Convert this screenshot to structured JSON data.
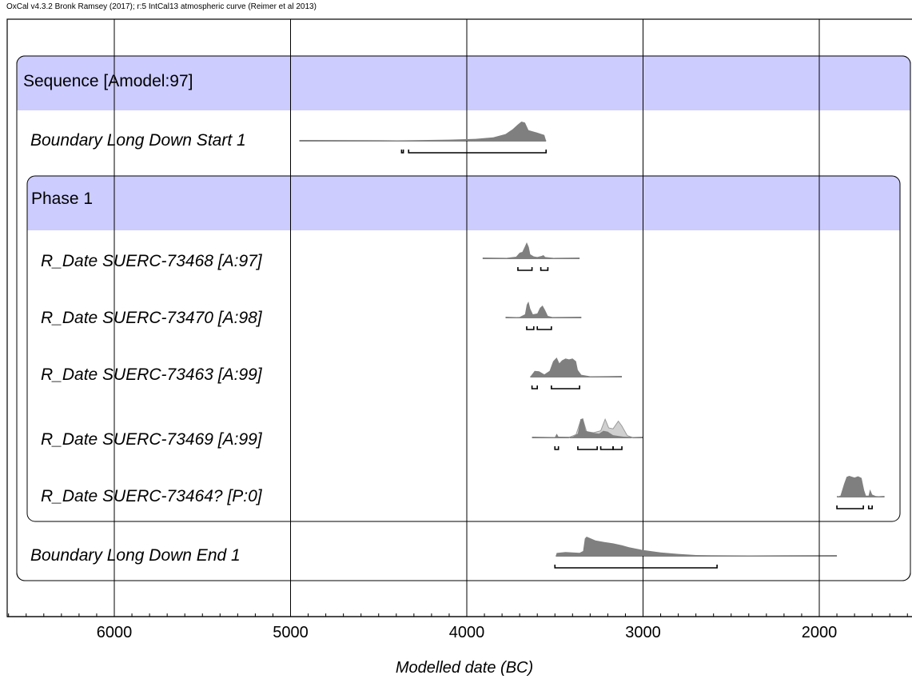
{
  "header": "OxCal v4.3.2 Bronk Ramsey (2017); r:5 IntCal13 atmospheric curve (Reimer et al 2013)",
  "chart_data": {
    "type": "area",
    "title": "",
    "xlabel": "Modelled date (BC)",
    "xticks": [
      6000,
      5000,
      4000,
      3000,
      2000
    ],
    "xlim": [
      6600,
      1500
    ],
    "minor_tick_step": 100,
    "grid": true,
    "colors": {
      "group_header": "#ccccff",
      "posterior": "#7f7f7f",
      "likelihood": "#d0d0d0",
      "frame": "#000000"
    },
    "groups": [
      {
        "label": "Sequence [Amodel:97]"
      },
      {
        "label": "Phase 1"
      }
    ],
    "rows": [
      {
        "label": "Boundary Long Down Start 1",
        "posterior": [
          [
            4950,
            0
          ],
          [
            4500,
            0.01
          ],
          [
            4300,
            0.03
          ],
          [
            4100,
            0.06
          ],
          [
            3950,
            0.1
          ],
          [
            3850,
            0.18
          ],
          [
            3780,
            0.35
          ],
          [
            3740,
            0.6
          ],
          [
            3710,
            0.85
          ],
          [
            3690,
            1.0
          ],
          [
            3670,
            0.95
          ],
          [
            3660,
            0.75
          ],
          [
            3650,
            0.55
          ],
          [
            3600,
            0.42
          ],
          [
            3560,
            0.3
          ],
          [
            3550,
            0
          ]
        ],
        "ranges": [
          [
            4370,
            4360
          ],
          [
            4330,
            3550
          ]
        ]
      },
      {
        "label": "R_Date SUERC-73468 [A:97]",
        "posterior": [
          [
            3910,
            0
          ],
          [
            3780,
            0.02
          ],
          [
            3720,
            0.1
          ],
          [
            3700,
            0.35
          ],
          [
            3685,
            0.4
          ],
          [
            3670,
            0.75
          ],
          [
            3660,
            1.0
          ],
          [
            3648,
            0.7
          ],
          [
            3640,
            0.25
          ],
          [
            3620,
            0.12
          ],
          [
            3600,
            0.08
          ],
          [
            3575,
            0.15
          ],
          [
            3565,
            0.2
          ],
          [
            3555,
            0.08
          ],
          [
            3500,
            0.02
          ],
          [
            3360,
            0
          ]
        ],
        "ranges": [
          [
            3710,
            3630
          ],
          [
            3580,
            3540
          ]
        ]
      },
      {
        "label": "R_Date SUERC-73470 [A:98]",
        "posterior": [
          [
            3780,
            0
          ],
          [
            3700,
            0.03
          ],
          [
            3670,
            0.2
          ],
          [
            3660,
            0.8
          ],
          [
            3650,
            1.0
          ],
          [
            3640,
            0.55
          ],
          [
            3625,
            0.2
          ],
          [
            3600,
            0.25
          ],
          [
            3585,
            0.6
          ],
          [
            3570,
            0.75
          ],
          [
            3555,
            0.45
          ],
          [
            3540,
            0.1
          ],
          [
            3510,
            0.02
          ],
          [
            3350,
            0
          ]
        ],
        "ranges": [
          [
            3660,
            3620
          ],
          [
            3600,
            3520
          ]
        ]
      },
      {
        "label": "R_Date SUERC-73463 [A:99]",
        "posterior": [
          [
            3640,
            0
          ],
          [
            3615,
            0.3
          ],
          [
            3590,
            0.28
          ],
          [
            3560,
            0.12
          ],
          [
            3530,
            0.3
          ],
          [
            3510,
            0.8
          ],
          [
            3490,
            1.0
          ],
          [
            3475,
            0.7
          ],
          [
            3460,
            0.85
          ],
          [
            3440,
            0.95
          ],
          [
            3420,
            0.9
          ],
          [
            3400,
            0.95
          ],
          [
            3380,
            0.8
          ],
          [
            3370,
            0.35
          ],
          [
            3350,
            0.1
          ],
          [
            3300,
            0.02
          ],
          [
            3120,
            0
          ]
        ],
        "ranges": [
          [
            3630,
            3600
          ],
          [
            3520,
            3360
          ]
        ]
      },
      {
        "label": "R_Date SUERC-73469 [A:99]",
        "posterior": [
          [
            3630,
            0
          ],
          [
            3500,
            0.02
          ],
          [
            3490,
            0.2
          ],
          [
            3480,
            0.04
          ],
          [
            3400,
            0.03
          ],
          [
            3370,
            0.2
          ],
          [
            3355,
            0.95
          ],
          [
            3340,
            1.0
          ],
          [
            3325,
            0.35
          ],
          [
            3290,
            0.25
          ],
          [
            3250,
            0.2
          ],
          [
            3225,
            0.35
          ],
          [
            3200,
            0.3
          ],
          [
            3170,
            0.12
          ],
          [
            3140,
            0.08
          ],
          [
            3110,
            0.04
          ],
          [
            3000,
            0
          ]
        ],
        "likelihood": [
          [
            3420,
            0
          ],
          [
            3380,
            0.15
          ],
          [
            3355,
            0.85
          ],
          [
            3340,
            0.9
          ],
          [
            3320,
            0.3
          ],
          [
            3280,
            0.25
          ],
          [
            3240,
            0.35
          ],
          [
            3215,
            0.95
          ],
          [
            3195,
            0.5
          ],
          [
            3170,
            0.45
          ],
          [
            3140,
            0.85
          ],
          [
            3120,
            0.6
          ],
          [
            3090,
            0.1
          ],
          [
            3060,
            0
          ]
        ],
        "ranges": [
          [
            3500,
            3480
          ],
          [
            3370,
            3260
          ],
          [
            3240,
            3170
          ],
          [
            3170,
            3120
          ]
        ]
      },
      {
        "label": "R_Date SUERC-73464? [P:0]",
        "posterior": [
          [
            1900,
            0
          ],
          [
            1880,
            0.05
          ],
          [
            1860,
            0.6
          ],
          [
            1845,
            0.95
          ],
          [
            1830,
            1.0
          ],
          [
            1800,
            0.92
          ],
          [
            1780,
            0.98
          ],
          [
            1760,
            0.9
          ],
          [
            1745,
            0.3
          ],
          [
            1735,
            0.05
          ],
          [
            1720,
            0.05
          ],
          [
            1712,
            0.35
          ],
          [
            1700,
            0.1
          ],
          [
            1680,
            0.03
          ],
          [
            1630,
            0
          ]
        ],
        "ranges": [
          [
            1900,
            1750
          ],
          [
            1720,
            1700
          ]
        ]
      },
      {
        "label": "Boundary Long Down End 1",
        "posterior": [
          [
            3495,
            0
          ],
          [
            3490,
            0.15
          ],
          [
            3440,
            0.2
          ],
          [
            3400,
            0.18
          ],
          [
            3360,
            0.16
          ],
          [
            3340,
            0.25
          ],
          [
            3330,
            0.9
          ],
          [
            3320,
            1.0
          ],
          [
            3270,
            0.8
          ],
          [
            3220,
            0.72
          ],
          [
            3170,
            0.65
          ],
          [
            3120,
            0.55
          ],
          [
            3080,
            0.45
          ],
          [
            3000,
            0.3
          ],
          [
            2900,
            0.18
          ],
          [
            2800,
            0.1
          ],
          [
            2700,
            0.04
          ],
          [
            2600,
            0.03
          ],
          [
            2400,
            0.02
          ],
          [
            2200,
            0.01
          ],
          [
            1900,
            0
          ]
        ],
        "ranges": [
          [
            3500,
            2580
          ]
        ]
      }
    ]
  }
}
